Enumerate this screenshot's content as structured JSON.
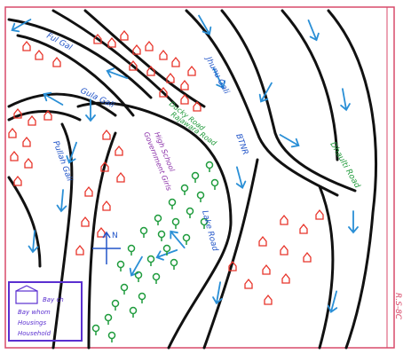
{
  "map": {
    "colors": {
      "paper": "#ffffff",
      "border": "#d94a6a",
      "road_edge": "#111111",
      "arrow": "#2a8fd6",
      "house": "#e8342a",
      "tree": "#1e9b3c",
      "label_blue": "#2255c8",
      "label_green": "#1f9a3a",
      "label_purple": "#8a2fa8",
      "legend": "#5a2fd0"
    },
    "icons": {
      "house": "house-icon",
      "tree": "tree-icon",
      "flow": "arrow-icon",
      "compass": "compass-icon"
    },
    "labels": {
      "road_left_top": "Ful Gal",
      "road_second": "Jhunu Gali",
      "road_near_park": "Gula Gali",
      "road_middle": "Rajawara Road",
      "road_center": "BTNR",
      "road_lower": "Lake Road",
      "road_right": "Dhaulti Road",
      "road_left_mid": "Pullah Gali",
      "park_label": "Ducky Road",
      "school_line1": "Government Girls",
      "school_line2": "High School",
      "compass_letter": "N",
      "legend_line1": "Bay ch",
      "legend_line2": "Bay whom",
      "legend_line3": "Housings",
      "legend_line4": "Household",
      "corner_code": "R.S-8C"
    }
  }
}
